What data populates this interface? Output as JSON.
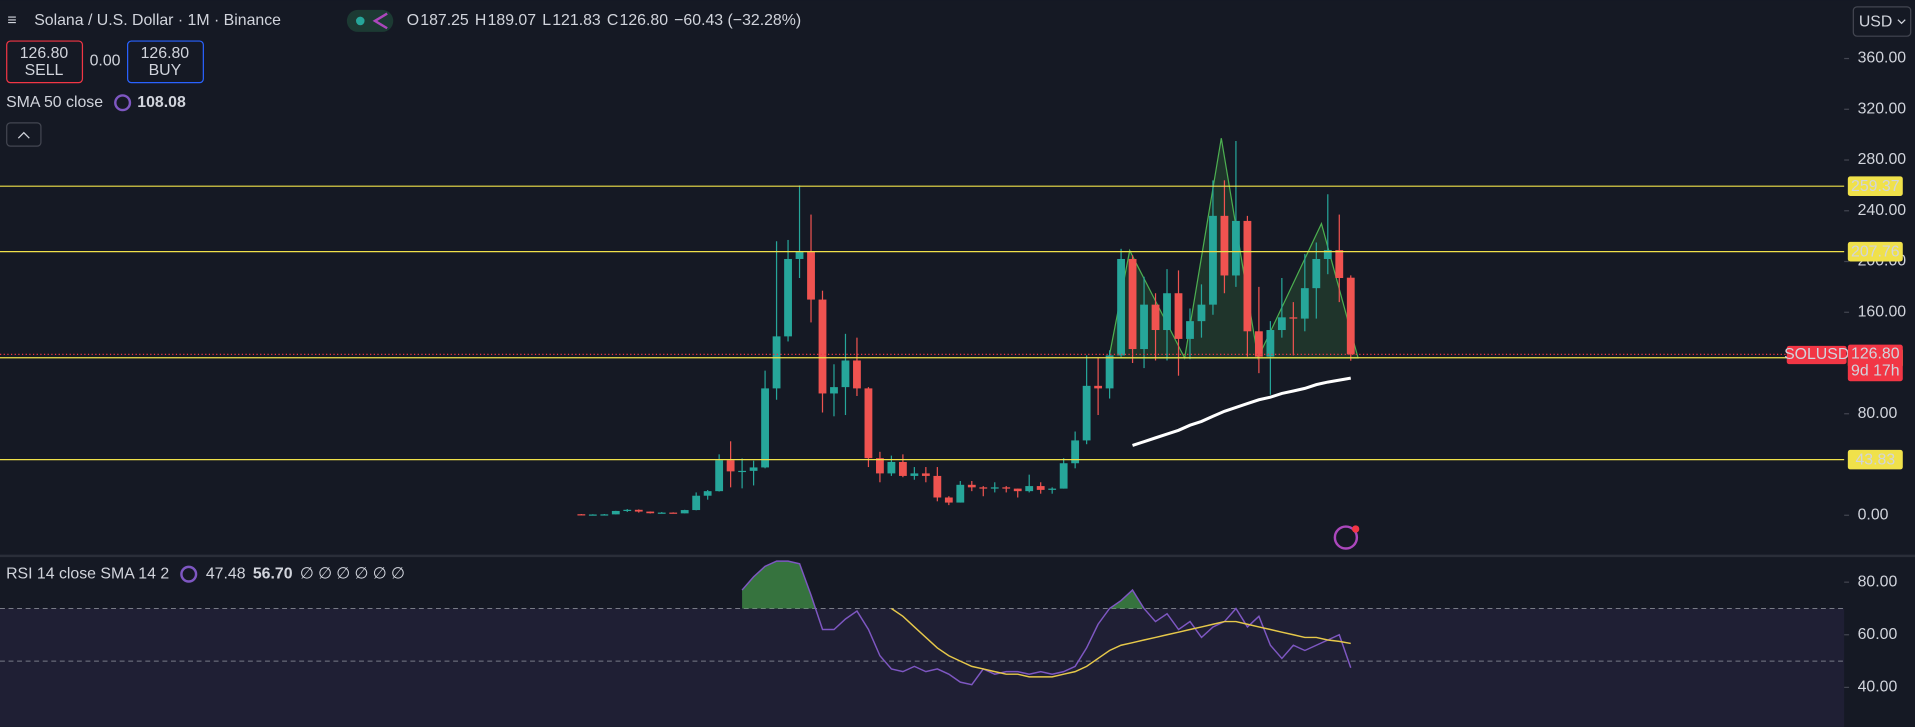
{
  "chart_data": [
    {
      "type": "candlestick",
      "title": "Solana / U.S. Dollar · 1M · Binance",
      "ohlc_legend": [
        [
          "O",
          "187.25"
        ],
        [
          "H",
          "189.07"
        ],
        [
          "L",
          "121.83"
        ],
        [
          "C",
          "126.80"
        ]
      ],
      "change": "−60.43 (−32.28%)",
      "trade": {
        "sell_price": "126.80",
        "sell": "SELL",
        "spread": "0.00",
        "buy_price": "126.80",
        "buy": "BUY"
      },
      "currency": "USD",
      "symbol_label": "SOLUSD",
      "countdown": "9d 17h",
      "up_color": "#26a69a",
      "down_color": "#ef5350",
      "open": [
        0.8,
        0.6,
        0.6,
        0.7,
        3.4,
        4.3,
        2.9,
        1.6,
        2.1,
        1.5,
        4.1,
        15.4,
        19,
        43.4,
        34.6,
        35,
        37.7,
        100,
        141,
        202,
        208,
        170,
        96,
        101,
        122,
        100,
        45,
        33,
        42,
        31,
        33,
        31,
        14,
        10,
        24,
        22,
        21,
        22,
        21,
        19,
        23,
        20,
        21,
        41,
        59,
        102,
        100,
        126,
        202,
        131,
        166,
        146,
        175,
        139,
        153,
        166,
        236,
        189,
        232,
        145,
        125,
        146,
        156,
        155,
        179,
        202,
        209,
        187.25
      ],
      "high": [
        1.0,
        0.8,
        1.0,
        3.5,
        4.9,
        4.6,
        3.0,
        2.5,
        2.3,
        4.3,
        18,
        19.9,
        48,
        58.3,
        44.8,
        43,
        114,
        216,
        217,
        260,
        237,
        177,
        119,
        143,
        140,
        101,
        50,
        47,
        48,
        38,
        38,
        38,
        15,
        27,
        27,
        23,
        26,
        23,
        21,
        32,
        26,
        22,
        45,
        66,
        126,
        124,
        130,
        210,
        205,
        188,
        175,
        194,
        193,
        163,
        182,
        264,
        264,
        295,
        236,
        180,
        153,
        187,
        168,
        206,
        215,
        253,
        237,
        189.07
      ],
      "low": [
        0.5,
        0.5,
        0.5,
        0.7,
        2.6,
        2.1,
        1.4,
        1.4,
        1.4,
        1.5,
        3.9,
        12.3,
        18.7,
        22,
        21.2,
        23.5,
        37,
        91,
        137,
        187,
        152,
        81,
        78,
        79,
        94,
        38,
        26,
        31,
        30,
        28,
        26,
        11,
        8,
        10,
        19,
        15,
        18,
        18,
        14,
        18,
        17,
        17,
        21,
        37,
        56,
        79,
        92,
        124,
        120,
        116,
        122,
        122,
        110,
        123,
        140,
        158,
        175,
        180,
        125,
        112,
        95,
        140,
        126,
        145,
        155,
        190,
        168,
        121.83
      ],
      "close": [
        0.6,
        0.6,
        0.7,
        3.4,
        4.3,
        2.9,
        1.6,
        2.1,
        1.5,
        4.1,
        15.4,
        19,
        43.4,
        34.6,
        35,
        37.7,
        100,
        141,
        202,
        208,
        170,
        96,
        101,
        122,
        100,
        45,
        33,
        42,
        31,
        33,
        31,
        14,
        10,
        24,
        22,
        21,
        22,
        21,
        19,
        23,
        20,
        21,
        41,
        59,
        102,
        100,
        126,
        202,
        131,
        166,
        146,
        175,
        139,
        153,
        166,
        236,
        189,
        232,
        145,
        125,
        146,
        156,
        155,
        179,
        202,
        209,
        187,
        126.8
      ],
      "series": [
        {
          "name": "SMA 50 close",
          "color": "#ffffff",
          "values": [
            null,
            null,
            null,
            null,
            null,
            null,
            null,
            null,
            null,
            null,
            null,
            null,
            null,
            null,
            null,
            null,
            null,
            null,
            null,
            null,
            null,
            null,
            null,
            null,
            null,
            null,
            null,
            null,
            null,
            null,
            null,
            null,
            null,
            null,
            null,
            null,
            null,
            null,
            null,
            null,
            null,
            null,
            null,
            null,
            null,
            null,
            null,
            null,
            55,
            58,
            61,
            64,
            67,
            71,
            74,
            78,
            82,
            85,
            88,
            91,
            93,
            96,
            98,
            100,
            103,
            105,
            106.5,
            108.08
          ]
        }
      ],
      "last_price": {
        "value": 126.8,
        "label": "126.80"
      },
      "last_color": "#f23645",
      "levels": [
        259.37,
        207.76,
        124.12,
        43.83
      ],
      "level_color": "#f0e14a",
      "ylim": [
        -32,
        406
      ],
      "yticks": [
        {
          "value": 0,
          "label": "0.00"
        },
        {
          "value": 80,
          "label": "80.00"
        },
        {
          "value": 160,
          "label": "160.00"
        },
        {
          "value": 200,
          "label": "200.00"
        },
        {
          "value": 240,
          "label": "240.00"
        },
        {
          "value": 280,
          "label": "280.00"
        },
        {
          "value": 320,
          "label": "320.00"
        },
        {
          "value": 360,
          "label": "360.00"
        }
      ]
    },
    {
      "type": "line",
      "title": "RSI 14 close SMA 14 2",
      "extra_legend": "∅ ∅ ∅ ∅ ∅ ∅",
      "series": [
        {
          "color": "#7e57c2",
          "values": [
            null,
            null,
            null,
            null,
            null,
            null,
            null,
            null,
            null,
            null,
            null,
            null,
            null,
            null,
            77,
            82,
            86,
            88,
            88,
            87,
            75,
            62,
            62,
            66,
            69,
            62,
            52,
            47,
            46,
            48,
            46,
            47,
            45,
            42,
            41,
            47,
            45,
            46,
            46,
            45,
            46,
            45,
            46,
            48,
            55,
            64,
            70,
            73,
            77,
            70,
            65,
            68,
            62,
            65,
            59,
            63,
            65,
            70,
            63,
            67,
            56,
            51,
            56,
            54,
            56,
            58,
            60,
            47.48
          ]
        },
        {
          "color": "#e6c84a",
          "values": [
            null,
            null,
            null,
            null,
            null,
            null,
            null,
            null,
            null,
            null,
            null,
            null,
            null,
            null,
            null,
            null,
            null,
            null,
            null,
            null,
            null,
            null,
            null,
            null,
            null,
            null,
            null,
            70,
            67,
            63,
            59,
            55,
            52,
            50,
            48,
            47,
            46,
            45,
            45,
            44,
            44,
            44,
            45,
            46,
            48,
            51,
            54,
            56,
            57,
            58,
            59,
            60,
            61,
            62,
            63,
            64,
            65,
            65,
            64,
            63,
            62,
            61,
            60,
            59,
            59,
            58,
            57.5,
            56.7
          ],
          "value_labels": [
            null,
            null,
            null,
            null,
            null,
            null,
            null,
            null,
            null,
            null,
            null,
            null,
            null,
            null,
            null,
            null,
            null,
            null,
            null,
            null,
            null,
            null,
            null,
            null,
            null,
            null,
            null,
            null,
            null,
            null,
            null,
            null,
            null,
            null,
            null,
            null,
            null,
            null,
            null,
            null,
            null,
            null,
            null,
            null,
            null,
            null,
            null,
            null,
            null,
            null,
            null,
            null,
            null,
            null,
            null,
            null,
            null,
            null,
            null,
            null,
            null,
            null,
            null,
            null,
            null,
            null,
            null,
            "56.70"
          ]
        }
      ],
      "levels": [
        70,
        50
      ],
      "band": [
        30,
        70
      ],
      "overbought_color": "#4caf50",
      "ylim": [
        25,
        90
      ],
      "yticks": [
        {
          "value": 80,
          "label": "80.00"
        },
        {
          "value": 60,
          "label": "60.00"
        },
        {
          "value": 40,
          "label": "40.00"
        }
      ]
    }
  ]
}
